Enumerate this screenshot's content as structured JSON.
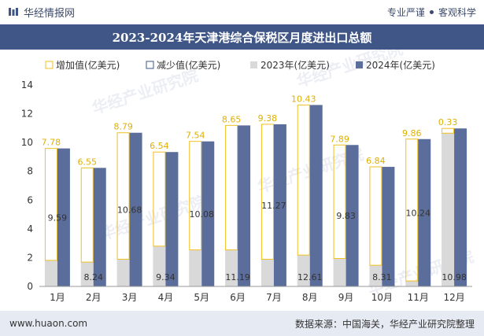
{
  "header": {
    "brand": "华经情报网",
    "tag_left": "专业严谨",
    "tag_right": "客观科学",
    "title": "2023-2024年天津港综合保税区月度进出口总额"
  },
  "footer": {
    "website": "www.huaon.com",
    "source": "数据来源：中国海关，华经产业研究院整理"
  },
  "watermark": "华经产业研究院",
  "colors": {
    "increase_border": "#f0c020",
    "decrease_border": "#3f5687",
    "y2023": "#d9d9d9",
    "y2024": "#5b6e9b",
    "increase_label": "#e0b000",
    "title_bg": "#3f5687"
  },
  "chart_data": {
    "type": "bar",
    "categories": [
      "1月",
      "2月",
      "3月",
      "4月",
      "5月",
      "6月",
      "7月",
      "8月",
      "9月",
      "10月",
      "11月",
      "12月"
    ],
    "series": [
      {
        "name": "增加值(亿美元)",
        "values": [
          7.78,
          6.55,
          8.79,
          6.54,
          7.54,
          8.65,
          9.38,
          10.43,
          7.89,
          6.84,
          9.86,
          0.33
        ]
      },
      {
        "name": "减少值(亿美元)",
        "values": [
          null,
          null,
          null,
          null,
          null,
          null,
          null,
          null,
          null,
          null,
          null,
          null
        ]
      },
      {
        "name": "2023年(亿美元)",
        "values": [
          1.81,
          1.69,
          1.89,
          2.8,
          2.54,
          2.54,
          1.89,
          2.18,
          1.94,
          1.47,
          0.38,
          10.65
        ]
      },
      {
        "name": "2024年(亿美元)",
        "values": [
          9.59,
          8.24,
          10.68,
          9.34,
          10.08,
          11.19,
          11.27,
          12.61,
          9.83,
          8.31,
          10.24,
          10.98
        ]
      }
    ],
    "ylim": [
      0,
      14
    ],
    "yticks": [
      "0",
      "2",
      "4",
      "6",
      "8",
      "10",
      "12",
      "14"
    ],
    "legend_position": "top",
    "grid": false,
    "xlabel": "",
    "ylabel": ""
  }
}
